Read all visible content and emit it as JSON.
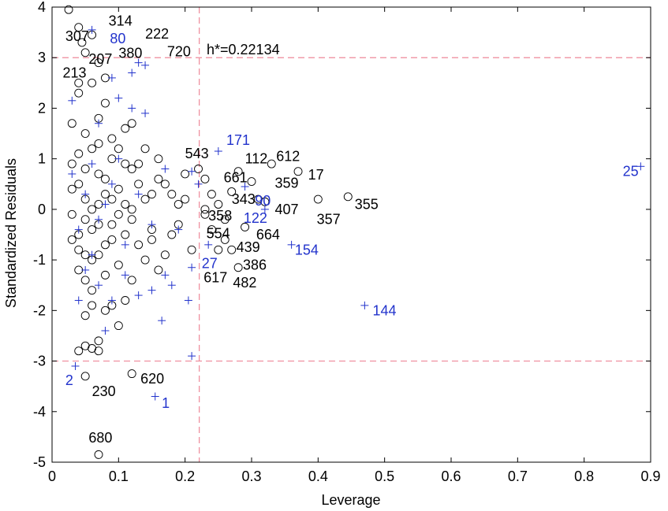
{
  "chart_data": {
    "type": "scatter",
    "title": "",
    "xlabel": "Leverage",
    "ylabel": "Standardized Residuals",
    "xlim": [
      0,
      0.9
    ],
    "ylim": [
      -5,
      4
    ],
    "x_ticks": [
      "0",
      "0.1",
      "0.2",
      "0.3",
      "0.4",
      "0.5",
      "0.6",
      "0.7",
      "0.8",
      "0.9"
    ],
    "y_ticks": [
      "-5",
      "-4",
      "-3",
      "-2",
      "-1",
      "0",
      "1",
      "2",
      "3",
      "4"
    ],
    "grid": false,
    "threshold_leverage": 0.22134,
    "threshold_label": "h*=0.22134",
    "residual_limits": [
      -3,
      3
    ],
    "colors": {
      "training": "#000000",
      "test": "#2233cc",
      "threshold": "#ee8899"
    },
    "series": [
      {
        "marker": "circle",
        "points": [
          [
            0.03,
            0.9
          ],
          [
            0.04,
            0.5
          ],
          [
            0.05,
            0.2
          ],
          [
            0.03,
            -0.1
          ],
          [
            0.06,
            -0.4
          ],
          [
            0.04,
            -0.8
          ],
          [
            0.07,
            0.7
          ],
          [
            0.08,
            0.3
          ],
          [
            0.05,
            -0.2
          ],
          [
            0.09,
            -0.6
          ],
          [
            0.06,
            1.2
          ],
          [
            0.1,
            0.4
          ],
          [
            0.07,
            -0.9
          ],
          [
            0.11,
            0.1
          ],
          [
            0.08,
            -1.3
          ],
          [
            0.12,
            0.8
          ],
          [
            0.09,
            -0.3
          ],
          [
            0.13,
            -0.7
          ],
          [
            0.05,
            1.5
          ],
          [
            0.1,
            -1.1
          ],
          [
            0.14,
            0.2
          ],
          [
            0.06,
            -1.6
          ],
          [
            0.15,
            -0.4
          ],
          [
            0.07,
            1.8
          ],
          [
            0.11,
            -1.8
          ],
          [
            0.16,
            0.6
          ],
          [
            0.08,
            2.1
          ],
          [
            0.12,
            -0.2
          ],
          [
            0.17,
            -0.9
          ],
          [
            0.09,
            1.4
          ],
          [
            0.03,
            0.4
          ],
          [
            0.04,
            -0.5
          ],
          [
            0.05,
            0.8
          ],
          [
            0.06,
            -1.0
          ],
          [
            0.07,
            0.1
          ],
          [
            0.08,
            -0.7
          ],
          [
            0.09,
            1.0
          ],
          [
            0.1,
            -0.1
          ],
          [
            0.11,
            0.9
          ],
          [
            0.12,
            -1.4
          ],
          [
            0.04,
            2.3
          ],
          [
            0.06,
            2.5
          ],
          [
            0.08,
            -2.0
          ],
          [
            0.1,
            -2.3
          ],
          [
            0.07,
            -2.6
          ],
          [
            0.05,
            -2.1
          ],
          [
            0.12,
            1.7
          ],
          [
            0.14,
            1.2
          ],
          [
            0.16,
            -1.2
          ],
          [
            0.18,
            0.3
          ],
          [
            0.03,
            1.7
          ],
          [
            0.05,
            -1.4
          ],
          [
            0.07,
            1.3
          ],
          [
            0.09,
            -1.9
          ],
          [
            0.11,
            1.6
          ],
          [
            0.13,
            0.5
          ],
          [
            0.15,
            -0.6
          ],
          [
            0.19,
            -0.3
          ],
          [
            0.2,
            0.7
          ],
          [
            0.21,
            -0.8
          ],
          [
            0.04,
            1.1
          ],
          [
            0.06,
            0.0
          ],
          [
            0.08,
            0.6
          ],
          [
            0.1,
            1.2
          ],
          [
            0.12,
            0.0
          ],
          [
            0.14,
            -1.0
          ],
          [
            0.16,
            1.0
          ],
          [
            0.18,
            -0.5
          ],
          [
            0.2,
            0.2
          ],
          [
            0.03,
            -0.6
          ],
          [
            0.05,
            -0.9
          ],
          [
            0.07,
            -0.3
          ],
          [
            0.09,
            0.2
          ],
          [
            0.11,
            -0.5
          ],
          [
            0.13,
            0.9
          ],
          [
            0.15,
            0.3
          ],
          [
            0.17,
            0.5
          ],
          [
            0.19,
            0.1
          ],
          [
            0.04,
            -1.2
          ],
          [
            0.06,
            -1.9
          ],
          [
            0.025,
            3.95
          ],
          [
            0.04,
            3.6
          ],
          [
            0.05,
            3.1
          ],
          [
            0.06,
            3.45
          ],
          [
            0.07,
            2.9
          ],
          [
            0.04,
            2.5
          ],
          [
            0.08,
            2.6
          ],
          [
            0.045,
            3.3
          ],
          [
            0.04,
            -2.8
          ],
          [
            0.05,
            -2.7
          ],
          [
            0.06,
            -2.75
          ],
          [
            0.07,
            -2.8
          ],
          [
            0.05,
            -3.3
          ],
          [
            0.12,
            -3.25
          ],
          [
            0.07,
            -4.85
          ],
          [
            0.22,
            0.8
          ],
          [
            0.23,
            0.6
          ],
          [
            0.24,
            0.3
          ],
          [
            0.25,
            0.1
          ],
          [
            0.23,
            -0.1
          ],
          [
            0.24,
            -0.4
          ],
          [
            0.26,
            -0.2
          ],
          [
            0.27,
            0.35
          ],
          [
            0.28,
            0.75
          ],
          [
            0.3,
            0.55
          ],
          [
            0.33,
            0.9
          ],
          [
            0.37,
            0.75
          ],
          [
            0.4,
            0.2
          ],
          [
            0.445,
            0.25
          ],
          [
            0.31,
            0.2
          ],
          [
            0.29,
            -0.35
          ],
          [
            0.27,
            -0.8
          ],
          [
            0.26,
            -0.6
          ],
          [
            0.25,
            -0.8
          ],
          [
            0.28,
            -1.15
          ],
          [
            0.32,
            0.15
          ],
          [
            0.23,
            0.0
          ]
        ]
      },
      {
        "marker": "plus",
        "points": [
          [
            0.03,
            2.15
          ],
          [
            0.07,
            1.7
          ],
          [
            0.1,
            2.2
          ],
          [
            0.12,
            2.0
          ],
          [
            0.09,
            2.6
          ],
          [
            0.13,
            2.9
          ],
          [
            0.14,
            1.9
          ],
          [
            0.06,
            3.55
          ],
          [
            0.14,
            2.85
          ],
          [
            0.12,
            2.7
          ],
          [
            0.03,
            0.7
          ],
          [
            0.05,
            0.3
          ],
          [
            0.07,
            -0.2
          ],
          [
            0.09,
            0.5
          ],
          [
            0.11,
            -0.7
          ],
          [
            0.13,
            0.3
          ],
          [
            0.15,
            -0.3
          ],
          [
            0.17,
            0.8
          ],
          [
            0.19,
            -0.4
          ],
          [
            0.21,
            0.75
          ],
          [
            0.05,
            -1.2
          ],
          [
            0.07,
            -1.5
          ],
          [
            0.09,
            -1.8
          ],
          [
            0.11,
            -1.3
          ],
          [
            0.13,
            -1.7
          ],
          [
            0.15,
            -1.6
          ],
          [
            0.17,
            -1.3
          ],
          [
            0.04,
            -1.8
          ],
          [
            0.08,
            -2.4
          ],
          [
            0.18,
            -1.5
          ],
          [
            0.035,
            -3.1
          ],
          [
            0.155,
            -3.7
          ],
          [
            0.165,
            -2.2
          ],
          [
            0.205,
            -1.8
          ],
          [
            0.21,
            -1.15
          ],
          [
            0.21,
            -2.9
          ],
          [
            0.235,
            -0.7
          ],
          [
            0.22,
            0.5
          ],
          [
            0.25,
            1.15
          ],
          [
            0.29,
            0.45
          ],
          [
            0.32,
            0.0
          ],
          [
            0.36,
            -0.7
          ],
          [
            0.47,
            -1.9
          ],
          [
            0.885,
            0.85
          ],
          [
            0.06,
            0.9
          ],
          [
            0.1,
            1.0
          ],
          [
            0.04,
            -0.4
          ],
          [
            0.08,
            0.1
          ],
          [
            0.06,
            -0.9
          ]
        ]
      }
    ],
    "annotations": [
      {
        "text": "314",
        "x": 0.085,
        "y": 3.73,
        "color": "black"
      },
      {
        "text": "307",
        "x": 0.02,
        "y": 3.42,
        "color": "black"
      },
      {
        "text": "80",
        "x": 0.087,
        "y": 3.38,
        "color": "blue"
      },
      {
        "text": "222",
        "x": 0.14,
        "y": 3.47,
        "color": "black"
      },
      {
        "text": "207",
        "x": 0.055,
        "y": 2.97,
        "color": "black"
      },
      {
        "text": "380",
        "x": 0.1,
        "y": 3.09,
        "color": "black"
      },
      {
        "text": "720",
        "x": 0.173,
        "y": 3.12,
        "color": "black"
      },
      {
        "text": "213",
        "x": 0.016,
        "y": 2.7,
        "color": "black"
      },
      {
        "text": "171",
        "x": 0.262,
        "y": 1.37,
        "color": "blue"
      },
      {
        "text": "543",
        "x": 0.2,
        "y": 1.1,
        "color": "black"
      },
      {
        "text": "112",
        "x": 0.29,
        "y": 1.0,
        "color": "black"
      },
      {
        "text": "612",
        "x": 0.337,
        "y": 1.05,
        "color": "black"
      },
      {
        "text": "661",
        "x": 0.258,
        "y": 0.63,
        "color": "black"
      },
      {
        "text": "359",
        "x": 0.335,
        "y": 0.52,
        "color": "black"
      },
      {
        "text": "17",
        "x": 0.385,
        "y": 0.68,
        "color": "black"
      },
      {
        "text": "343",
        "x": 0.27,
        "y": 0.2,
        "color": "black"
      },
      {
        "text": "90",
        "x": 0.305,
        "y": 0.17,
        "color": "blue"
      },
      {
        "text": "407",
        "x": 0.335,
        "y": 0.0,
        "color": "black"
      },
      {
        "text": "355",
        "x": 0.455,
        "y": 0.1,
        "color": "black"
      },
      {
        "text": "358",
        "x": 0.235,
        "y": -0.13,
        "color": "black"
      },
      {
        "text": "122",
        "x": 0.288,
        "y": -0.17,
        "color": "blue"
      },
      {
        "text": "357",
        "x": 0.398,
        "y": -0.2,
        "color": "black"
      },
      {
        "text": "554",
        "x": 0.232,
        "y": -0.48,
        "color": "black"
      },
      {
        "text": "664",
        "x": 0.307,
        "y": -0.5,
        "color": "black"
      },
      {
        "text": "439",
        "x": 0.277,
        "y": -0.75,
        "color": "black"
      },
      {
        "text": "154",
        "x": 0.365,
        "y": -0.8,
        "color": "blue"
      },
      {
        "text": "27",
        "x": 0.225,
        "y": -1.07,
        "color": "blue"
      },
      {
        "text": "386",
        "x": 0.287,
        "y": -1.1,
        "color": "black"
      },
      {
        "text": "617",
        "x": 0.228,
        "y": -1.35,
        "color": "black"
      },
      {
        "text": "482",
        "x": 0.272,
        "y": -1.45,
        "color": "black"
      },
      {
        "text": "144",
        "x": 0.482,
        "y": -2.0,
        "color": "blue"
      },
      {
        "text": "25",
        "x": 0.858,
        "y": 0.75,
        "color": "blue"
      },
      {
        "text": "2",
        "x": 0.02,
        "y": -3.38,
        "color": "blue"
      },
      {
        "text": "230",
        "x": 0.06,
        "y": -3.6,
        "color": "black"
      },
      {
        "text": "620",
        "x": 0.133,
        "y": -3.35,
        "color": "black"
      },
      {
        "text": "1",
        "x": 0.165,
        "y": -3.83,
        "color": "blue"
      },
      {
        "text": "680",
        "x": 0.055,
        "y": -4.52,
        "color": "black"
      }
    ]
  }
}
